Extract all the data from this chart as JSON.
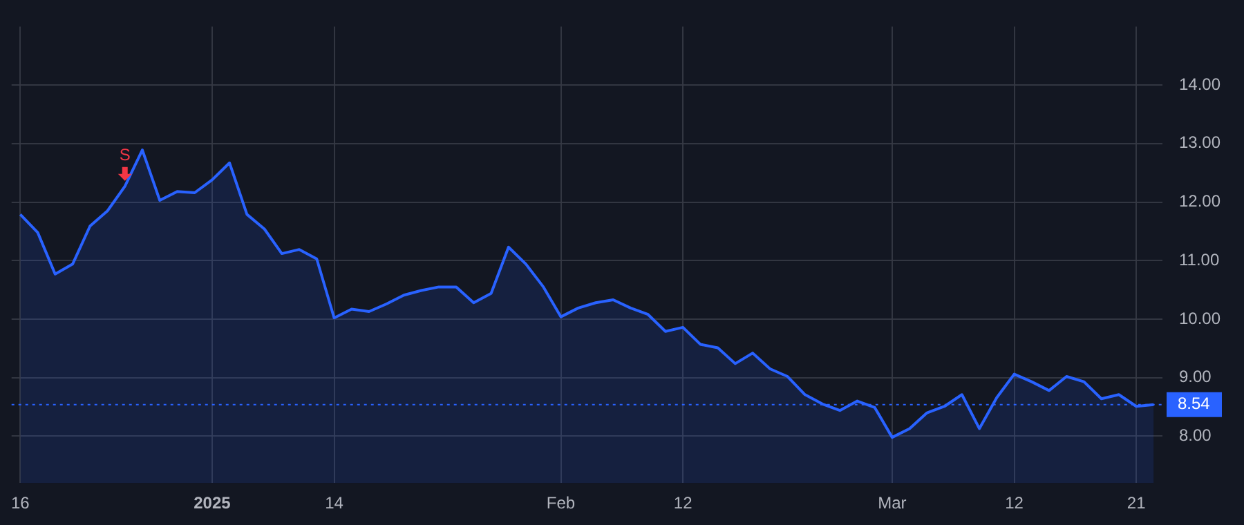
{
  "chart_data": {
    "type": "area",
    "categories": [
      "16",
      null,
      null,
      null,
      null,
      null,
      null,
      null,
      null,
      null,
      null,
      "2025",
      null,
      null,
      null,
      null,
      null,
      null,
      "14",
      null,
      null,
      null,
      null,
      null,
      null,
      null,
      null,
      null,
      null,
      null,
      null,
      "Feb",
      null,
      null,
      null,
      null,
      null,
      null,
      "12",
      null,
      null,
      null,
      null,
      null,
      null,
      null,
      null,
      null,
      null,
      null,
      "Mar",
      null,
      null,
      null,
      null,
      null,
      null,
      "12",
      null,
      null,
      null,
      null,
      null,
      null,
      "21",
      null
    ],
    "series": [
      {
        "color": "#2962ff",
        "values": [
          11.79,
          11.48,
          10.77,
          10.94,
          11.59,
          11.85,
          12.27,
          12.89,
          12.03,
          12.18,
          12.16,
          12.38,
          12.67,
          11.79,
          11.54,
          11.12,
          11.19,
          11.03,
          10.02,
          10.17,
          10.13,
          10.26,
          10.41,
          10.49,
          10.55,
          10.55,
          10.28,
          10.44,
          11.23,
          10.94,
          10.55,
          10.04,
          10.19,
          10.28,
          10.33,
          10.19,
          10.08,
          9.79,
          9.86,
          9.57,
          9.51,
          9.24,
          9.42,
          9.15,
          9.02,
          8.71,
          8.55,
          8.44,
          8.6,
          8.49,
          7.98,
          8.13,
          8.4,
          8.51,
          8.71,
          8.13,
          8.66,
          9.06,
          8.93,
          8.78,
          9.02,
          8.93,
          8.64,
          8.71,
          8.51,
          8.54
        ]
      }
    ],
    "ylim": [
      7.2,
      15.0
    ],
    "yticks": [
      {
        "value": 8,
        "label": "8.00"
      },
      {
        "value": 9,
        "label": "9.00"
      },
      {
        "value": 10,
        "label": "10.00"
      },
      {
        "value": 11,
        "label": "11.00"
      },
      {
        "value": 12,
        "label": "12.00"
      },
      {
        "value": 13,
        "label": "13.00"
      },
      {
        "value": 14,
        "label": "14.00"
      }
    ],
    "grid": true,
    "legend": false,
    "marker": "none",
    "line_style": "solid",
    "ref_lines": [
      {
        "axis": "y",
        "value": 8.54,
        "label": "8.54",
        "color": "#2962ff",
        "line_style": "dotted"
      }
    ],
    "annotations": [
      {
        "text": "S",
        "y": 12.27
      }
    ]
  }
}
